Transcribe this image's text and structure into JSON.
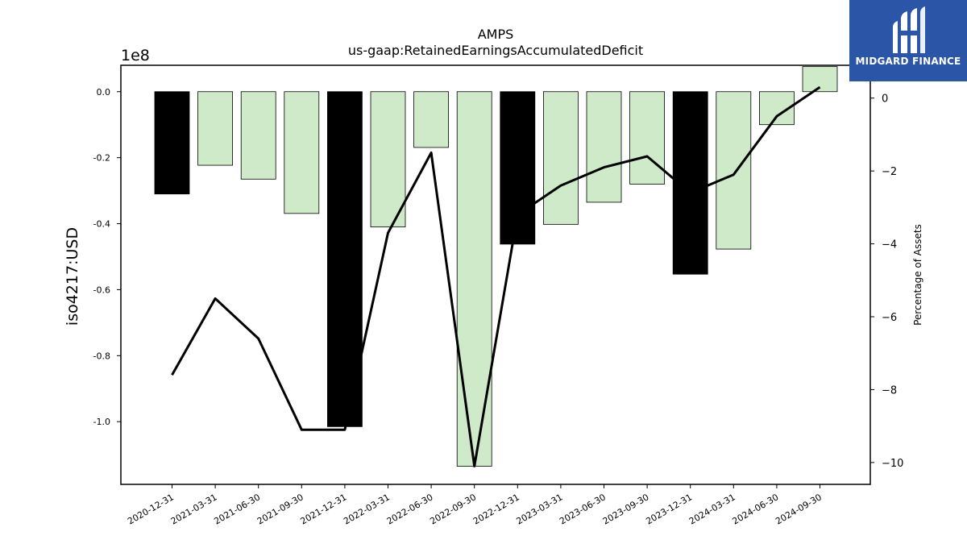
{
  "chart_data": {
    "type": "bar",
    "title": "AMPS",
    "subtitle": "us-gaap:RetainedEarningsAccumulatedDeficit",
    "ylabel": "iso4217:USD",
    "y2label": "Percentage of Assets",
    "scale_label": "1e8",
    "categories": [
      "2020-12-31",
      "2021-03-31",
      "2021-06-30",
      "2021-09-30",
      "2021-12-31",
      "2022-03-31",
      "2022-06-30",
      "2022-09-30",
      "2022-12-31",
      "2023-03-31",
      "2023-06-30",
      "2023-09-30",
      "2023-12-31",
      "2024-03-31",
      "2024-06-30",
      "2024-09-30"
    ],
    "series": [
      {
        "values": [
          -31000000,
          -22300000,
          -26500000,
          -36900000,
          -101500000,
          -41000000,
          -16900000,
          -113500000,
          -46200000,
          -40200000,
          -33500000,
          -28000000,
          -55300000,
          -47700000,
          -10000000,
          7600000
        ],
        "annual_flags": [
          true,
          false,
          false,
          false,
          true,
          false,
          false,
          false,
          true,
          false,
          false,
          false,
          true,
          false,
          false,
          false
        ]
      },
      {
        "axis": "right",
        "values": [
          -7.6,
          -5.5,
          -6.6,
          -9.1,
          -9.1,
          -3.7,
          -1.5,
          -10.1,
          -3.2,
          -2.4,
          -1.9,
          -1.6,
          -2.6,
          -2.1,
          -0.5,
          0.3
        ]
      }
    ],
    "ylim": [
      -119000000,
      8000000
    ],
    "y_ticks": [
      0.0,
      -0.2,
      -0.4,
      -0.6,
      -0.8,
      -1.0
    ],
    "y2lim": [
      -10.6,
      0.9
    ],
    "y2_ticks": [
      0,
      -2,
      -4,
      -6,
      -8,
      -10
    ],
    "colors": {
      "annual_bar": "#000000",
      "quarter_bar": "#cfeac8",
      "line": "#000000"
    }
  },
  "logo": {
    "text": "MIDGARD FINANCE",
    "background": "#2b56a8"
  }
}
